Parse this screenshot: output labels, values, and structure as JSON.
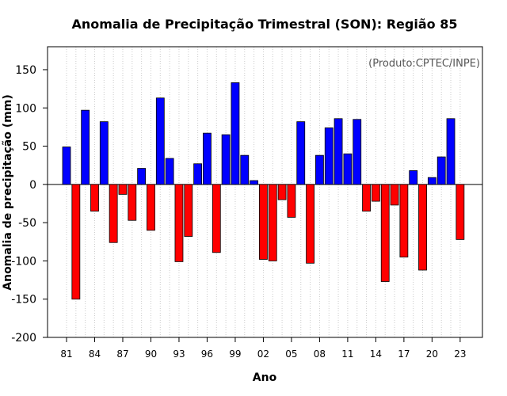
{
  "chart_data": {
    "type": "bar",
    "title": "Anomalia de Precipitação Trimestral (SON): Região 85",
    "xlabel": "Ano",
    "ylabel": "Anomalia de precipitação (mm)",
    "credit": "(Produto:CPTEC/INPE)",
    "ylim": [
      -200,
      180
    ],
    "yticks": [
      -200,
      -150,
      -100,
      -50,
      0,
      50,
      100,
      150
    ],
    "grid": "vertical-dotted",
    "categories": [
      "81",
      "82",
      "83",
      "84",
      "85",
      "86",
      "87",
      "88",
      "89",
      "90",
      "91",
      "92",
      "93",
      "94",
      "95",
      "96",
      "97",
      "98",
      "99",
      "00",
      "01",
      "02",
      "03",
      "04",
      "05",
      "06",
      "07",
      "08",
      "09",
      "10",
      "11",
      "12",
      "13",
      "14",
      "15",
      "16",
      "17",
      "18",
      "19",
      "20",
      "21",
      "22",
      "23"
    ],
    "xtick_labels": [
      "81",
      "84",
      "87",
      "90",
      "93",
      "96",
      "99",
      "02",
      "05",
      "08",
      "11",
      "14",
      "17",
      "20",
      "23"
    ],
    "values": [
      49,
      -150,
      97,
      -35,
      82,
      -76,
      -13,
      -47,
      21,
      -60,
      113,
      34,
      -101,
      -68,
      27,
      67,
      -89,
      65,
      133,
      38,
      5,
      -98,
      -100,
      -20,
      -43,
      82,
      -103,
      38,
      74,
      86,
      40,
      85,
      -35,
      -22,
      -127,
      -27,
      -95,
      18,
      -112,
      9,
      36,
      86,
      -72
    ],
    "positive_color": "#0000ff",
    "negative_color": "#ff0000"
  }
}
